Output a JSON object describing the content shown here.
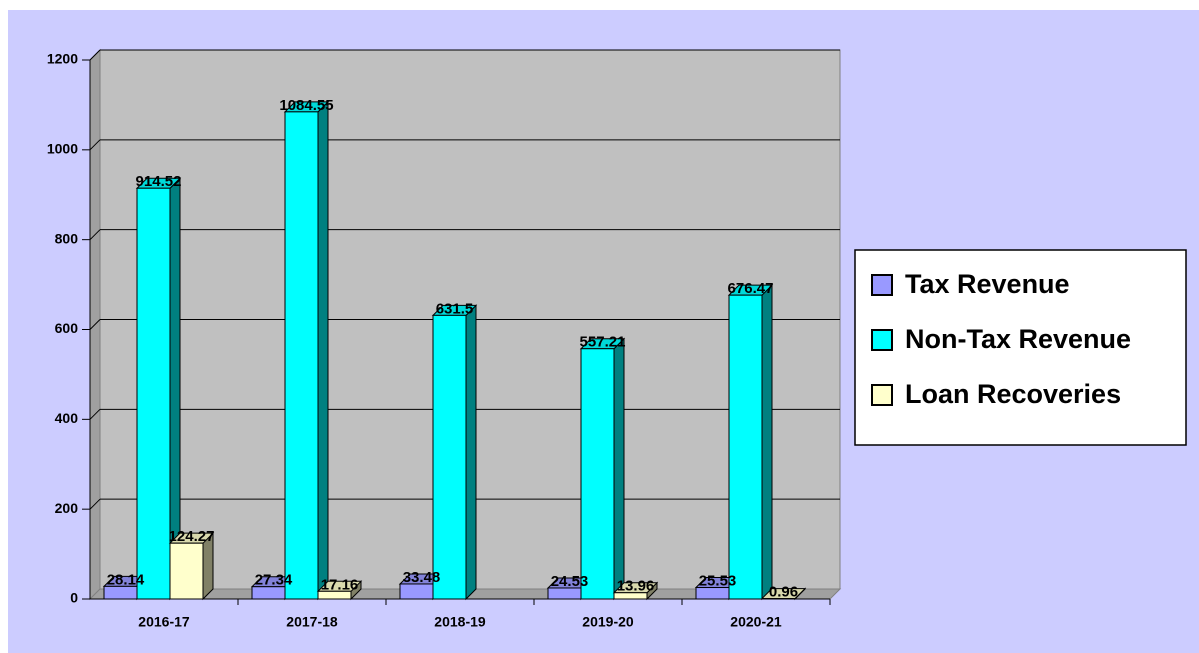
{
  "chart_data": {
    "type": "bar3d",
    "categories": [
      "2016-17",
      "2017-18",
      "2018-19",
      "2019-20",
      "2020-21"
    ],
    "series": [
      {
        "name": "Tax Revenue",
        "color": "#9999ff",
        "values": [
          28.14,
          27.34,
          33.48,
          24.53,
          25.53
        ]
      },
      {
        "name": "Non-Tax Revenue",
        "color": "#00ffff",
        "values": [
          914.52,
          1084.55,
          631.5,
          557.21,
          676.47
        ]
      },
      {
        "name": "Loan Recoveries",
        "color": "#ffffcc",
        "values": [
          124.27,
          17.16,
          null,
          13.96,
          0.96
        ]
      }
    ],
    "ylim": [
      0,
      1200
    ],
    "yticks": [
      0,
      200,
      400,
      600,
      800,
      1000,
      1200
    ],
    "grid": true,
    "legend": "right"
  }
}
